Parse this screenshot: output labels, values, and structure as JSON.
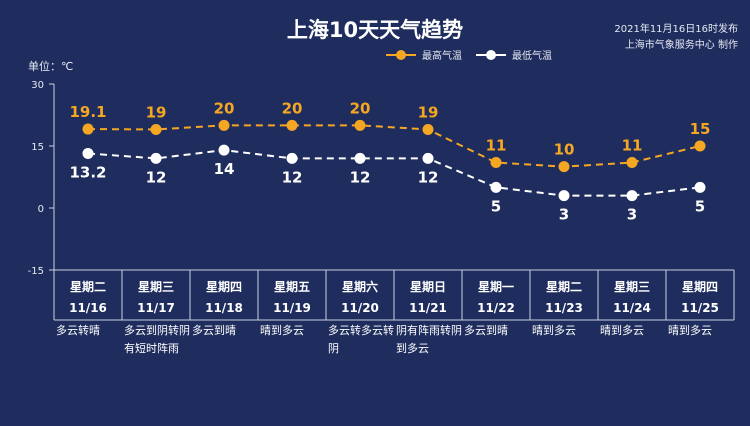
{
  "header": {
    "title": "上海10天天气趋势",
    "publish_time": "2021年11月16日16时发布",
    "publisher": "上海市气象服务中心 制作",
    "unit": "单位：℃"
  },
  "colors": {
    "background": "#1f2d5e",
    "high": "#f5a623",
    "low": "#ffffff",
    "grid": "#c9cfe0"
  },
  "chart_data": {
    "type": "line",
    "categories": [
      "11/16",
      "11/17",
      "11/18",
      "11/19",
      "11/20",
      "11/21",
      "11/22",
      "11/23",
      "11/24",
      "11/25"
    ],
    "weekdays": [
      "星期二",
      "星期三",
      "星期四",
      "星期五",
      "星期六",
      "星期日",
      "星期一",
      "星期二",
      "星期三",
      "星期四"
    ],
    "series": [
      {
        "name": "最高气温",
        "values": [
          19.1,
          19,
          20,
          20,
          20,
          19,
          11,
          10,
          11,
          15
        ],
        "labels": [
          "19.1",
          "19",
          "20",
          "20",
          "20",
          "19",
          "11",
          "10",
          "11",
          "15"
        ]
      },
      {
        "name": "最低气温",
        "values": [
          13.2,
          12,
          14,
          12,
          12,
          12,
          5,
          3,
          3,
          5
        ],
        "labels": [
          "13.2",
          "12",
          "14",
          "12",
          "12",
          "12",
          "5",
          "3",
          "3",
          "5"
        ]
      }
    ],
    "yticks": [
      "30",
      "15",
      "0",
      "-15"
    ],
    "ylim": [
      -15,
      30
    ],
    "legend": "top-right",
    "grid": false
  },
  "conditions": [
    "多云转晴",
    "多云到阴转阴有短时阵雨",
    "多云到晴",
    "晴到多云",
    "多云转多云转阴",
    "阴有阵雨转阴到多云",
    "多云到晴",
    "晴到多云",
    "晴到多云",
    "晴到多云"
  ]
}
